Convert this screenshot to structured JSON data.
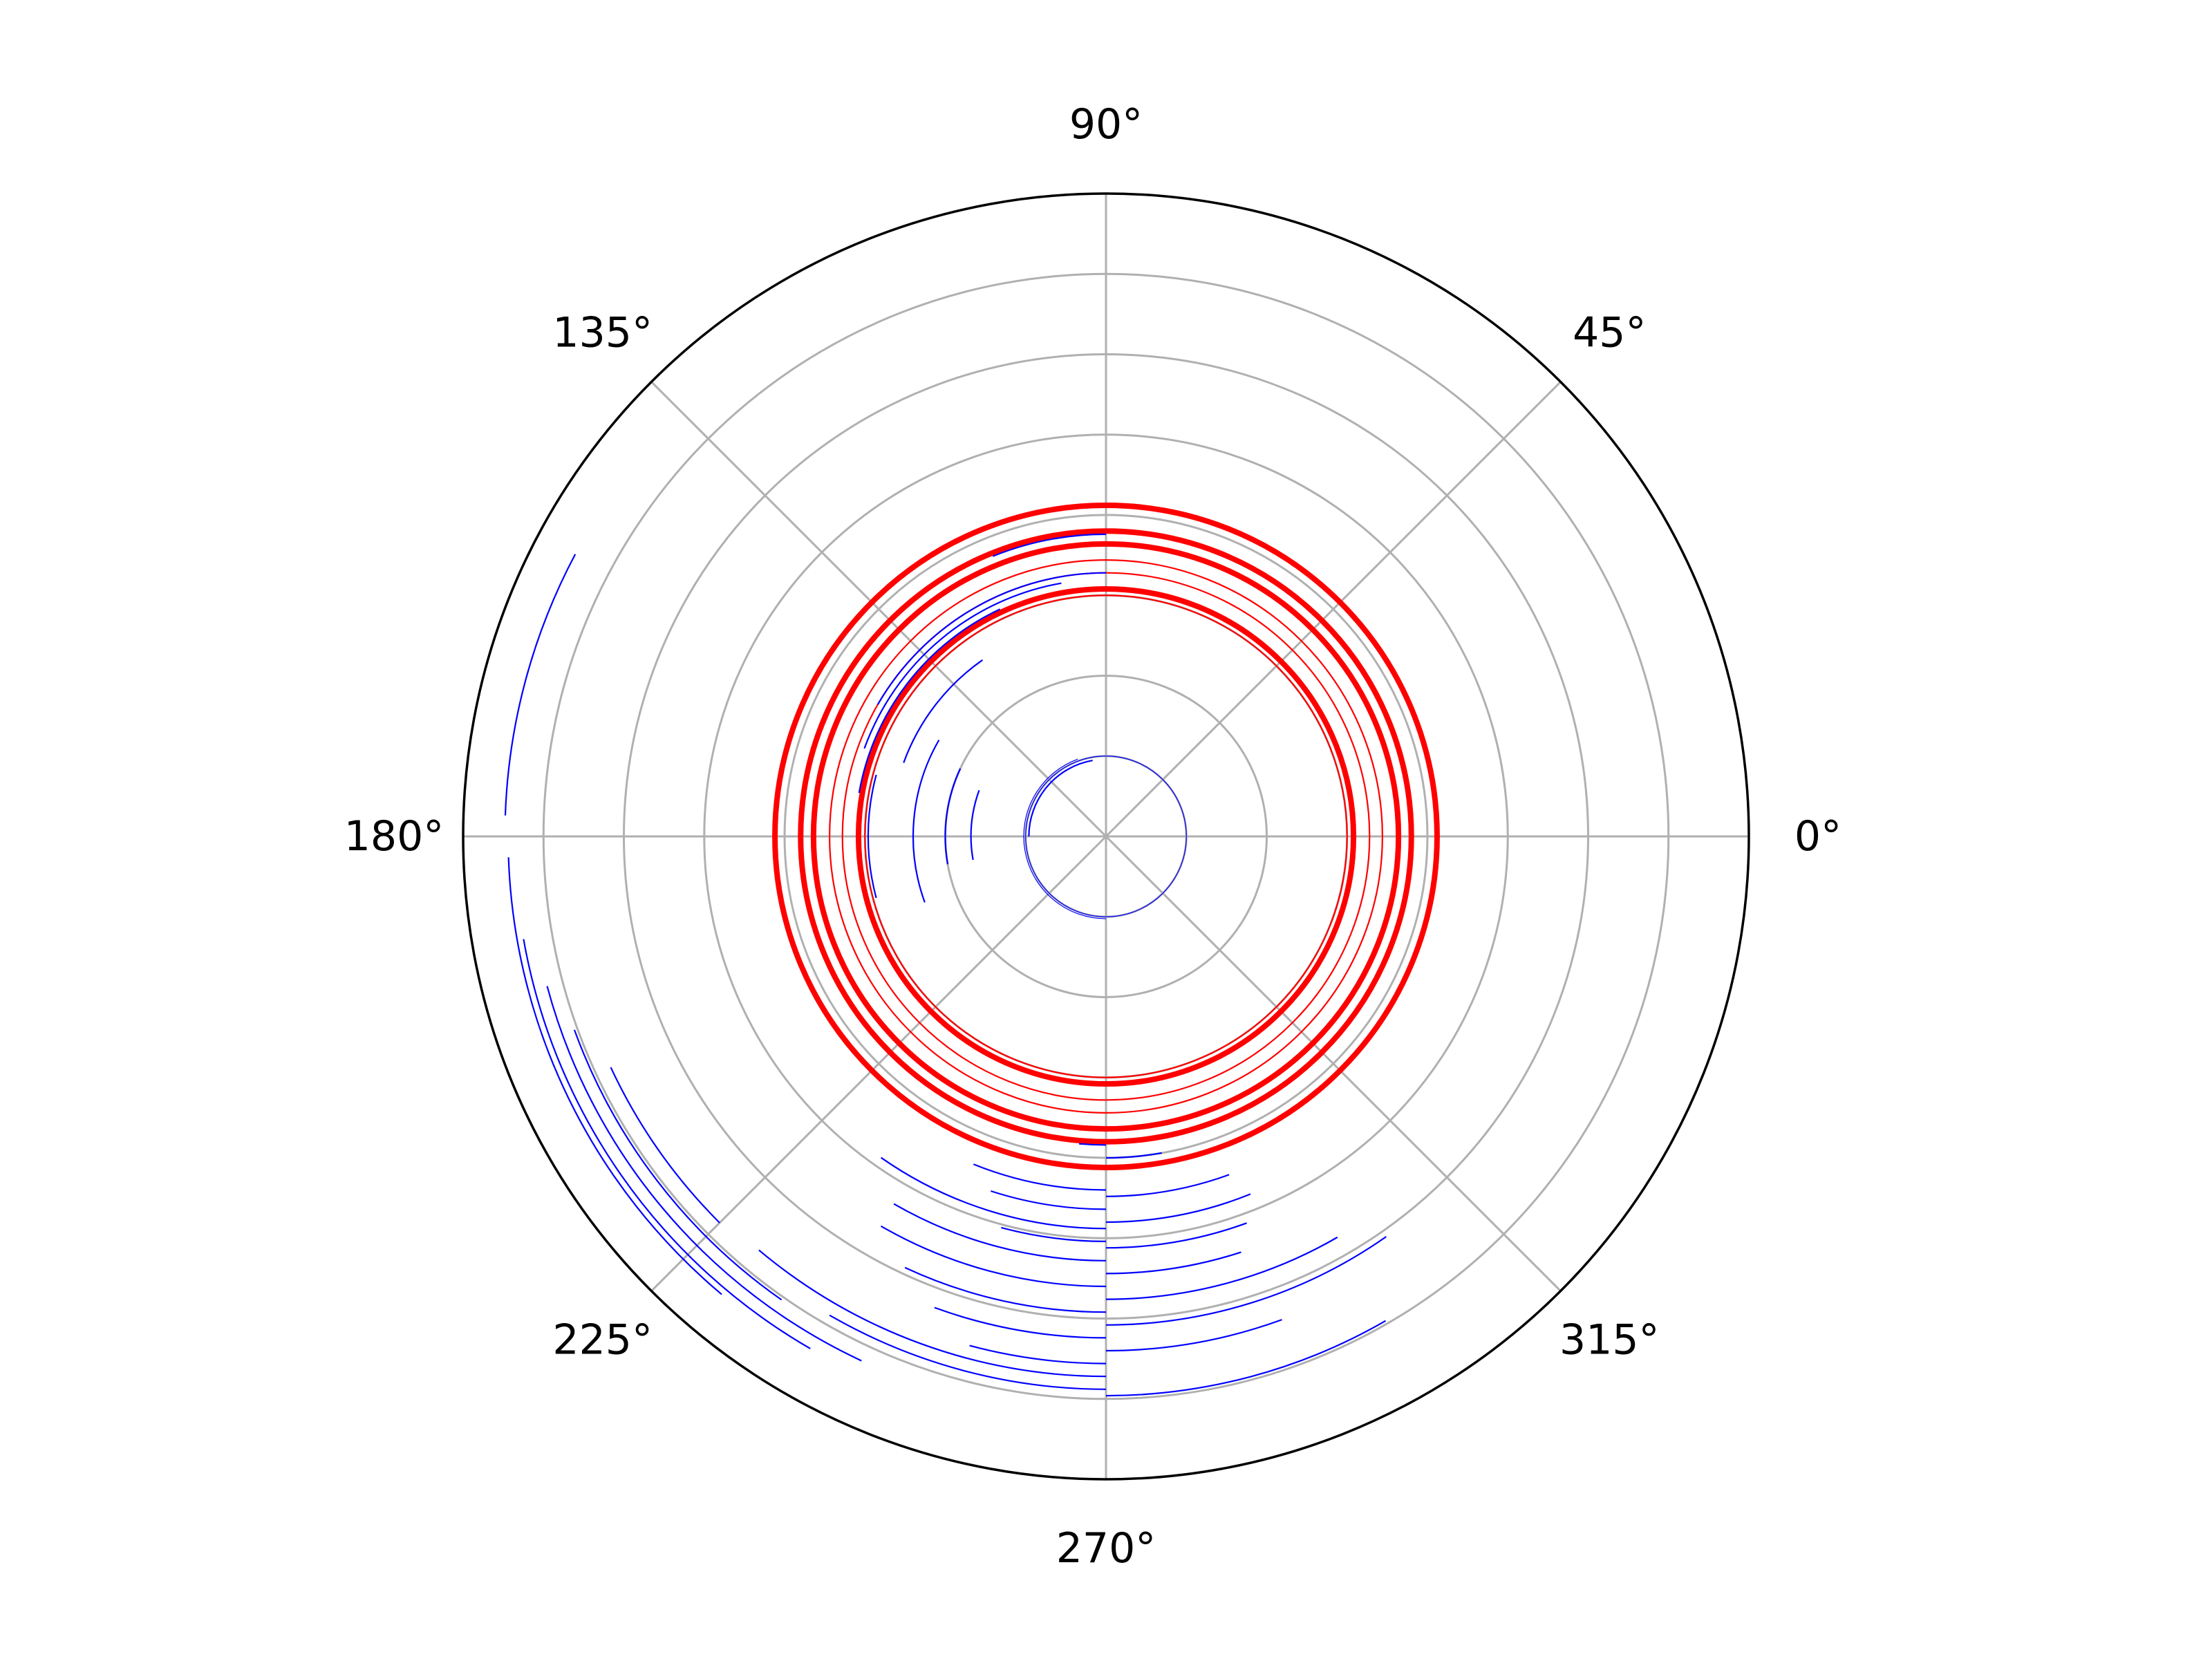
{
  "chart_data": {
    "type": "polar",
    "title": "",
    "theta_tick_labels": [
      "0°",
      "45°",
      "90°",
      "135°",
      "180°",
      "225°",
      "270°",
      "315°"
    ],
    "r_tick_labels_visible": false,
    "r_max": 1.0,
    "r_gridlines": [
      0.125,
      0.25,
      0.375,
      0.5,
      0.625,
      0.75,
      0.875
    ],
    "grid": true,
    "colors": {
      "grid": "#b0b0b0",
      "frame": "#000000",
      "circles": "#ff0000",
      "arcs": "#0000ff"
    },
    "series": [
      {
        "color": "#ff0000",
        "style": "full-circles",
        "circles": [
          {
            "r": 0.515,
            "width": "thick"
          },
          {
            "r": 0.475,
            "width": "thick"
          },
          {
            "r": 0.455,
            "width": "thick"
          },
          {
            "r": 0.43,
            "width": "thin"
          },
          {
            "r": 0.41,
            "width": "thin"
          },
          {
            "r": 0.385,
            "width": "thick"
          },
          {
            "r": 0.375,
            "width": "thin"
          }
        ]
      },
      {
        "color": "#0000ff",
        "style": "arc-fragments",
        "arcs": [
          {
            "r": 0.125,
            "theta": [
              0,
              360
            ],
            "width": "hairline"
          },
          {
            "r": 0.128,
            "theta": [
              110,
              270
            ],
            "width": "hairline"
          },
          {
            "r": 0.12,
            "theta": [
              100,
              180
            ],
            "width": "thin"
          },
          {
            "r": 0.47,
            "theta": [
              90,
              112
            ],
            "width": "thin"
          },
          {
            "r": 0.41,
            "theta": [
              90,
              150
            ],
            "width": "thin"
          },
          {
            "r": 0.4,
            "theta": [
              100,
              160
            ],
            "width": "thin"
          },
          {
            "r": 0.39,
            "theta": [
              115,
              170
            ],
            "width": "thin"
          },
          {
            "r": 0.335,
            "theta": [
              125,
              160
            ],
            "width": "thin"
          },
          {
            "r": 0.37,
            "theta": [
              165,
              195
            ],
            "width": "thin"
          },
          {
            "r": 0.3,
            "theta": [
              150,
              200
            ],
            "width": "thin"
          },
          {
            "r": 0.25,
            "theta": [
              155,
              190
            ],
            "width": "thin"
          },
          {
            "r": 0.21,
            "theta": [
              160,
              190
            ],
            "width": "thin"
          },
          {
            "r": 0.48,
            "theta": [
              265,
              270
            ],
            "width": "thin"
          },
          {
            "r": 0.5,
            "theta": [
              270,
              280
            ],
            "width": "thin"
          },
          {
            "r": 0.55,
            "theta": [
              248,
              270
            ],
            "width": "thin"
          },
          {
            "r": 0.56,
            "theta": [
              270,
              290
            ],
            "width": "thin"
          },
          {
            "r": 0.58,
            "theta": [
              252,
              270
            ],
            "width": "thin"
          },
          {
            "r": 0.6,
            "theta": [
              270,
              292
            ],
            "width": "thin"
          },
          {
            "r": 0.61,
            "theta": [
              235,
              270
            ],
            "width": "thin"
          },
          {
            "r": 0.63,
            "theta": [
              255,
              270
            ],
            "width": "thin"
          },
          {
            "r": 0.64,
            "theta": [
              270,
              290
            ],
            "width": "thin"
          },
          {
            "r": 0.66,
            "theta": [
              240,
              270
            ],
            "width": "thin"
          },
          {
            "r": 0.68,
            "theta": [
              270,
              288
            ],
            "width": "thin"
          },
          {
            "r": 0.7,
            "theta": [
              240,
              270
            ],
            "width": "thin"
          },
          {
            "r": 0.72,
            "theta": [
              270,
              300
            ],
            "width": "thin"
          },
          {
            "r": 0.74,
            "theta": [
              245,
              270
            ],
            "width": "thin"
          },
          {
            "r": 0.76,
            "theta": [
              270,
              305
            ],
            "width": "thin"
          },
          {
            "r": 0.78,
            "theta": [
              250,
              270
            ],
            "width": "thin"
          },
          {
            "r": 0.8,
            "theta": [
              270,
              290
            ],
            "width": "thin"
          },
          {
            "r": 0.82,
            "theta": [
              255,
              270
            ],
            "width": "thin"
          },
          {
            "r": 0.84,
            "theta": [
              230,
              270
            ],
            "width": "thin"
          },
          {
            "r": 0.86,
            "theta": [
              240,
              270
            ],
            "width": "thin"
          },
          {
            "r": 0.87,
            "theta": [
              270,
              300
            ],
            "width": "thin"
          },
          {
            "r": 0.935,
            "theta": [
              152,
              178
            ],
            "width": "thin"
          },
          {
            "r": 0.93,
            "theta": [
              182,
              230
            ],
            "width": "thin"
          },
          {
            "r": 0.92,
            "theta": [
              190,
              240
            ],
            "width": "thin"
          },
          {
            "r": 0.9,
            "theta": [
              195,
              245
            ],
            "width": "thin"
          },
          {
            "r": 0.88,
            "theta": [
              200,
              235
            ],
            "width": "thin"
          },
          {
            "r": 0.85,
            "theta": [
              205,
              225
            ],
            "width": "thin"
          }
        ]
      }
    ]
  }
}
